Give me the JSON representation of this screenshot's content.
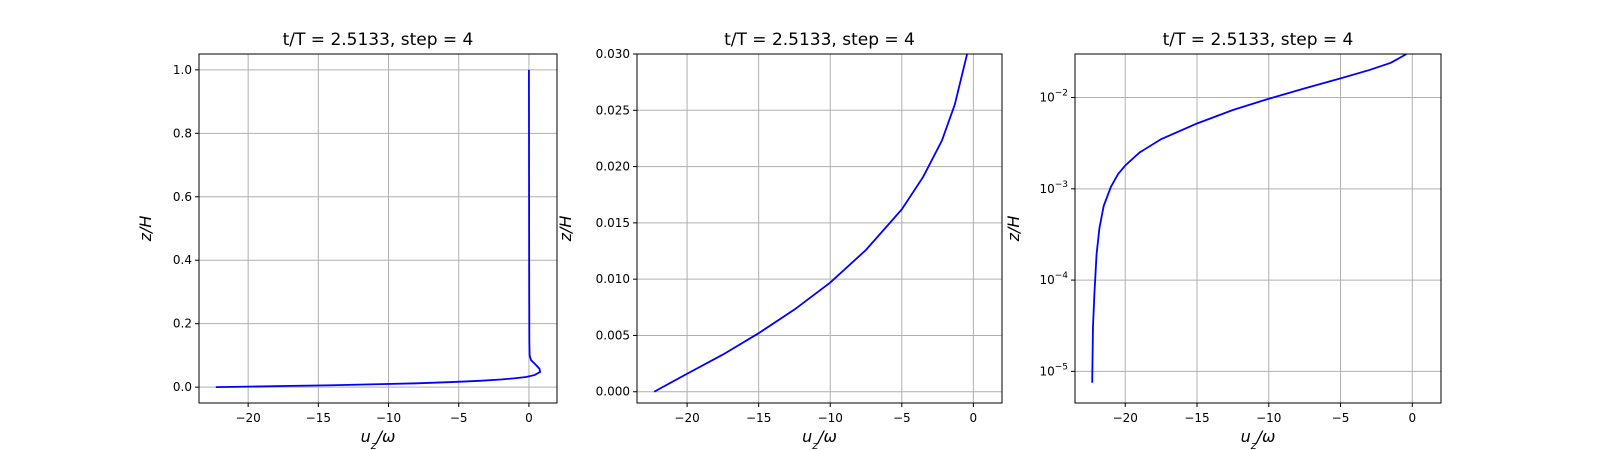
{
  "figure": {
    "background": "#ffffff"
  },
  "chart_data": [
    {
      "type": "line",
      "title": "t/T = 2.5133, step = 4",
      "xlabel": "u_z/ω",
      "ylabel": "z/H",
      "xlim": [
        -23.5,
        2
      ],
      "ylim": [
        -0.05,
        1.05
      ],
      "yscale": "linear",
      "grid": true,
      "xticks": [
        -20,
        -15,
        -10,
        -5,
        0
      ],
      "xtick_labels": [
        "−20",
        "−15",
        "−10",
        "−5",
        "0"
      ],
      "yticks": [
        0.0,
        0.2,
        0.4,
        0.6,
        0.8,
        1.0
      ],
      "ytick_labels": [
        "0.0",
        "0.2",
        "0.4",
        "0.6",
        "0.8",
        "1.0"
      ],
      "series": [
        {
          "color": "#0000ff",
          "x": [
            -22.3,
            -20,
            -17,
            -14,
            -11,
            -8,
            -5.5,
            -3.5,
            -2,
            -1,
            -0.2,
            0.4,
            0.8,
            0.75,
            0.45,
            0.15,
            0.05,
            0.03,
            0.02,
            0.0
          ],
          "y": [
            0.0,
            0.0015,
            0.004,
            0.006,
            0.009,
            0.012,
            0.016,
            0.02,
            0.024,
            0.028,
            0.032,
            0.038,
            0.048,
            0.058,
            0.072,
            0.085,
            0.1,
            0.14,
            0.3,
            1.0
          ]
        }
      ]
    },
    {
      "type": "line",
      "title": "t/T = 2.5133, step = 4",
      "xlabel": "u_z/ω",
      "ylabel": "z/H",
      "xlim": [
        -23.5,
        2
      ],
      "ylim": [
        -0.001,
        0.03
      ],
      "yscale": "linear",
      "grid": true,
      "xticks": [
        -20,
        -15,
        -10,
        -5,
        0
      ],
      "xtick_labels": [
        "−20",
        "−15",
        "−10",
        "−5",
        "0"
      ],
      "yticks": [
        0.0,
        0.005,
        0.01,
        0.015,
        0.02,
        0.025,
        0.03
      ],
      "ytick_labels": [
        "0.000",
        "0.005",
        "0.010",
        "0.015",
        "0.020",
        "0.025",
        "0.030"
      ],
      "series": [
        {
          "color": "#0000ff",
          "x": [
            -22.3,
            -20,
            -17.5,
            -15,
            -12.5,
            -10,
            -7.5,
            -5,
            -3.5,
            -2.2,
            -1.3,
            -0.4
          ],
          "y": [
            0.0,
            0.0016,
            0.0033,
            0.0052,
            0.0073,
            0.0097,
            0.0126,
            0.0162,
            0.0191,
            0.0223,
            0.0255,
            0.0302
          ]
        }
      ]
    },
    {
      "type": "line",
      "title": "t/T = 2.5133, step = 4",
      "xlabel": "u_z/ω",
      "ylabel": "z/H",
      "xlim": [
        -23.5,
        2
      ],
      "ylim": [
        4.5e-06,
        0.03
      ],
      "yscale": "log",
      "grid": true,
      "xticks": [
        -20,
        -15,
        -10,
        -5,
        0
      ],
      "xtick_labels": [
        "−20",
        "−15",
        "−10",
        "−5",
        "0"
      ],
      "yticks": [
        1e-05,
        0.0001,
        0.001,
        0.01
      ],
      "ytick_labels": [
        {
          "base": "10",
          "exp": "−5"
        },
        {
          "base": "10",
          "exp": "−4"
        },
        {
          "base": "10",
          "exp": "−3"
        },
        {
          "base": "10",
          "exp": "−2"
        }
      ],
      "series": [
        {
          "color": "#0000ff",
          "x": [
            -22.3,
            -22.25,
            -22.15,
            -22.0,
            -21.8,
            -21.5,
            -21.0,
            -20.5,
            -20.0,
            -19.0,
            -17.5,
            -15.0,
            -12.5,
            -10.0,
            -7.5,
            -5.0,
            -3.0,
            -1.5,
            -0.4
          ],
          "y": [
            7.5e-06,
            3e-05,
            7e-05,
            0.00019,
            0.00037,
            0.00065,
            0.00105,
            0.00145,
            0.0018,
            0.0025,
            0.0035,
            0.0052,
            0.0073,
            0.0097,
            0.0126,
            0.0162,
            0.02,
            0.024,
            0.03
          ]
        }
      ]
    }
  ]
}
